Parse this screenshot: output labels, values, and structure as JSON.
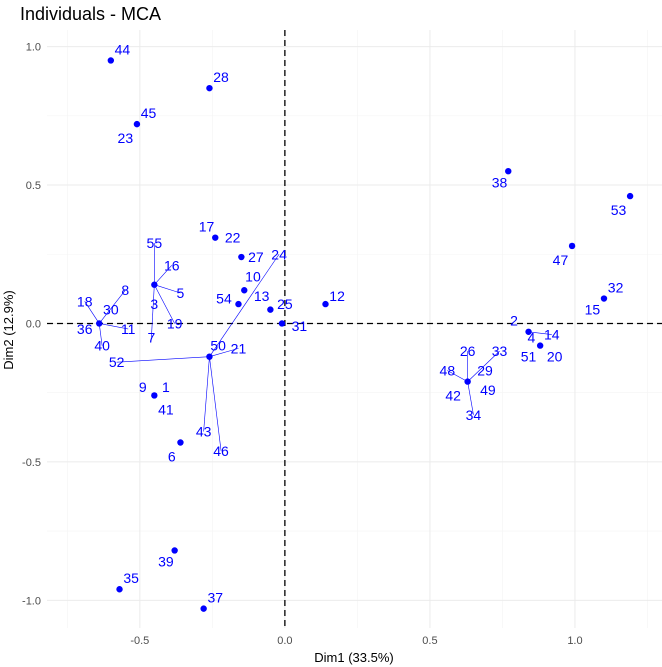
{
  "chart_data": {
    "type": "scatter",
    "title": "Individuals - MCA",
    "xlabel": "Dim1 (33.5%)",
    "ylabel": "Dim2 (12.9%)",
    "xlim": [
      -0.82,
      1.3
    ],
    "ylim": [
      -1.1,
      1.06
    ],
    "xticks": [
      -0.5,
      0.0,
      0.5,
      1.0
    ],
    "yticks": [
      -1.0,
      -0.5,
      0.0,
      0.5,
      1.0
    ],
    "xtick_labels": [
      "-0.5",
      "0.0",
      "0.5",
      "1.0"
    ],
    "ytick_labels": [
      "-1.0",
      "-0.5",
      "0.0",
      "0.5",
      "1.0"
    ],
    "grid": true,
    "reference_lines": {
      "x": 0,
      "y": 0,
      "style": "dashed"
    },
    "point_color": "#0000ff",
    "points": [
      {
        "label": "44",
        "x": -0.6,
        "y": 0.95,
        "lx": -0.56,
        "ly": 0.99
      },
      {
        "label": "28",
        "x": -0.26,
        "y": 0.85,
        "lx": -0.22,
        "ly": 0.89
      },
      {
        "label": "45",
        "x": -0.51,
        "y": 0.72,
        "lx": -0.47,
        "ly": 0.76
      },
      {
        "label": "23",
        "x": -0.51,
        "y": 0.72,
        "lx": -0.55,
        "ly": 0.67
      },
      {
        "label": "38",
        "x": 0.77,
        "y": 0.55,
        "lx": 0.74,
        "ly": 0.51
      },
      {
        "label": "53",
        "x": 1.19,
        "y": 0.46,
        "lx": 1.15,
        "ly": 0.41
      },
      {
        "label": "17",
        "x": -0.24,
        "y": 0.31,
        "lx": -0.27,
        "ly": 0.35
      },
      {
        "label": "22",
        "x": -0.15,
        "y": 0.24,
        "lx": -0.18,
        "ly": 0.31
      },
      {
        "label": "27",
        "x": -0.15,
        "y": 0.24,
        "lx": -0.1,
        "ly": 0.24
      },
      {
        "label": "24",
        "x": -0.26,
        "y": -0.12,
        "lx": -0.02,
        "ly": 0.25
      },
      {
        "label": "10",
        "x": -0.14,
        "y": 0.12,
        "lx": -0.11,
        "ly": 0.17
      },
      {
        "label": "13",
        "x": -0.14,
        "y": 0.12,
        "lx": -0.08,
        "ly": 0.1
      },
      {
        "label": "54",
        "x": -0.16,
        "y": 0.07,
        "lx": -0.21,
        "ly": 0.09
      },
      {
        "label": "55",
        "x": -0.45,
        "y": 0.14,
        "lx": -0.45,
        "ly": 0.29
      },
      {
        "label": "16",
        "x": -0.45,
        "y": 0.14,
        "lx": -0.39,
        "ly": 0.21
      },
      {
        "label": "5",
        "x": -0.45,
        "y": 0.14,
        "lx": -0.36,
        "ly": 0.11
      },
      {
        "label": "3",
        "x": -0.45,
        "y": 0.14,
        "lx": -0.45,
        "ly": 0.07
      },
      {
        "label": "19",
        "x": -0.45,
        "y": 0.14,
        "lx": -0.38,
        "ly": 0.0
      },
      {
        "label": "7",
        "x": -0.45,
        "y": 0.14,
        "lx": -0.46,
        "ly": -0.05
      },
      {
        "label": "8",
        "x": -0.64,
        "y": 0.0,
        "lx": -0.55,
        "ly": 0.12
      },
      {
        "label": "18",
        "x": -0.64,
        "y": 0.0,
        "lx": -0.69,
        "ly": 0.08
      },
      {
        "label": "30",
        "x": -0.64,
        "y": 0.0,
        "lx": -0.6,
        "ly": 0.05
      },
      {
        "label": "36",
        "x": -0.64,
        "y": 0.0,
        "lx": -0.69,
        "ly": -0.02
      },
      {
        "label": "11",
        "x": -0.64,
        "y": 0.0,
        "lx": -0.54,
        "ly": -0.02
      },
      {
        "label": "40",
        "x": -0.64,
        "y": 0.0,
        "lx": -0.63,
        "ly": -0.08
      },
      {
        "label": "52",
        "x": -0.26,
        "y": -0.12,
        "lx": -0.58,
        "ly": -0.14
      },
      {
        "label": "50",
        "x": -0.26,
        "y": -0.12,
        "lx": -0.23,
        "ly": -0.08
      },
      {
        "label": "21",
        "x": -0.26,
        "y": -0.12,
        "lx": -0.16,
        "ly": -0.09
      },
      {
        "label": "25",
        "x": -0.05,
        "y": 0.05,
        "lx": 0.0,
        "ly": 0.07
      },
      {
        "label": "31",
        "x": -0.01,
        "y": 0.0,
        "lx": 0.05,
        "ly": -0.01
      },
      {
        "label": "12",
        "x": 0.14,
        "y": 0.07,
        "lx": 0.18,
        "ly": 0.1
      },
      {
        "label": "9",
        "x": -0.45,
        "y": -0.26,
        "lx": -0.49,
        "ly": -0.23
      },
      {
        "label": "1",
        "x": -0.45,
        "y": -0.26,
        "lx": -0.41,
        "ly": -0.23
      },
      {
        "label": "41",
        "x": -0.45,
        "y": -0.26,
        "lx": -0.41,
        "ly": -0.31
      },
      {
        "label": "43",
        "x": -0.26,
        "y": -0.12,
        "lx": -0.28,
        "ly": -0.39
      },
      {
        "label": "46",
        "x": -0.26,
        "y": -0.12,
        "lx": -0.22,
        "ly": -0.46
      },
      {
        "label": "6",
        "x": -0.36,
        "y": -0.43,
        "lx": -0.39,
        "ly": -0.48
      },
      {
        "label": "39",
        "x": -0.38,
        "y": -0.82,
        "lx": -0.41,
        "ly": -0.86
      },
      {
        "label": "35",
        "x": -0.57,
        "y": -0.96,
        "lx": -0.53,
        "ly": -0.92
      },
      {
        "label": "37",
        "x": -0.28,
        "y": -1.03,
        "lx": -0.24,
        "ly": -0.99
      },
      {
        "label": "2",
        "x": 0.84,
        "y": -0.03,
        "lx": 0.79,
        "ly": 0.01
      },
      {
        "label": "4",
        "x": 0.84,
        "y": -0.03,
        "lx": 0.85,
        "ly": -0.05
      },
      {
        "label": "14",
        "x": 0.84,
        "y": -0.03,
        "lx": 0.92,
        "ly": -0.04
      },
      {
        "label": "51",
        "x": 0.88,
        "y": -0.08,
        "lx": 0.84,
        "ly": -0.12
      },
      {
        "label": "20",
        "x": 0.88,
        "y": -0.08,
        "lx": 0.93,
        "ly": -0.12
      },
      {
        "label": "47",
        "x": 0.99,
        "y": 0.28,
        "lx": 0.95,
        "ly": 0.23
      },
      {
        "label": "32",
        "x": 1.1,
        "y": 0.09,
        "lx": 1.14,
        "ly": 0.13
      },
      {
        "label": "15",
        "x": 1.1,
        "y": 0.09,
        "lx": 1.06,
        "ly": 0.05
      },
      {
        "label": "26",
        "x": 0.63,
        "y": -0.21,
        "lx": 0.63,
        "ly": -0.1
      },
      {
        "label": "33",
        "x": 0.63,
        "y": -0.21,
        "lx": 0.74,
        "ly": -0.1
      },
      {
        "label": "48",
        "x": 0.63,
        "y": -0.21,
        "lx": 0.56,
        "ly": -0.17
      },
      {
        "label": "29",
        "x": 0.63,
        "y": -0.21,
        "lx": 0.69,
        "ly": -0.17
      },
      {
        "label": "42",
        "x": 0.63,
        "y": -0.21,
        "lx": 0.58,
        "ly": -0.26
      },
      {
        "label": "49",
        "x": 0.63,
        "y": -0.21,
        "lx": 0.7,
        "ly": -0.24
      },
      {
        "label": "34",
        "x": 0.63,
        "y": -0.21,
        "lx": 0.65,
        "ly": -0.33
      }
    ]
  }
}
